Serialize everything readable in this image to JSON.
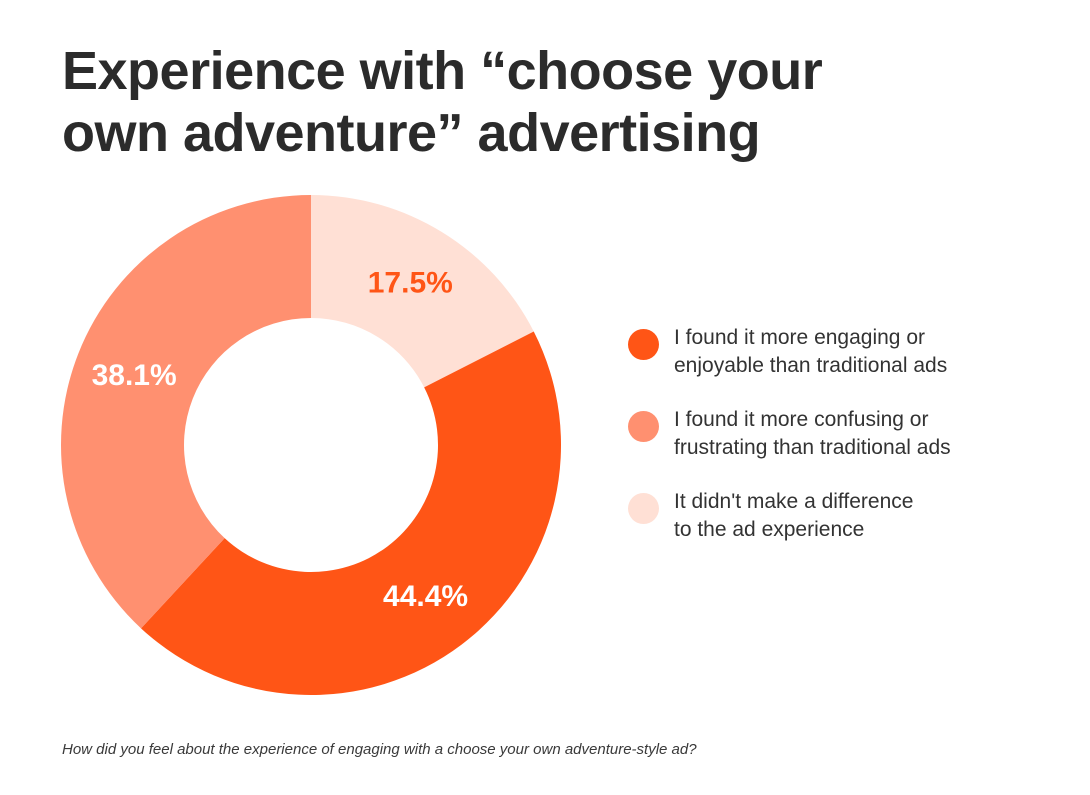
{
  "title_lines": [
    "Experience with “choose your",
    "own adventure” advertising"
  ],
  "footnote": "How did you feel about the experience of engaging with a choose your own adventure-style ad?",
  "chart_data": {
    "type": "pie",
    "donut": true,
    "title": "Experience with “choose your own adventure” advertising",
    "categories": [
      "I found it more engaging or enjoyable than traditional ads",
      "I found it more confusing or frustrating than traditional ads",
      "It didn't make a difference to the ad experience"
    ],
    "values": [
      44.4,
      38.1,
      17.5
    ],
    "value_labels": [
      "44.4%",
      "38.1%",
      "17.5%"
    ],
    "colors": [
      "#ff5516",
      "#ff9070",
      "#ffe0d5"
    ],
    "label_colors": [
      "#ffffff",
      "#ffffff",
      "#ff5516"
    ],
    "start_angle_deg": 0,
    "direction": "clockwise",
    "drawing_order": [
      2,
      0,
      1
    ],
    "legend_position": "right"
  },
  "legend": [
    {
      "lines": [
        "I found it more engaging or",
        "enjoyable than traditional ads"
      ],
      "color": "#ff5516"
    },
    {
      "lines": [
        "I found it more confusing or",
        "frustrating than traditional ads"
      ],
      "color": "#ff9070"
    },
    {
      "lines": [
        "It didn't make a difference",
        "to the ad experience"
      ],
      "color": "#ffe0d5"
    }
  ]
}
